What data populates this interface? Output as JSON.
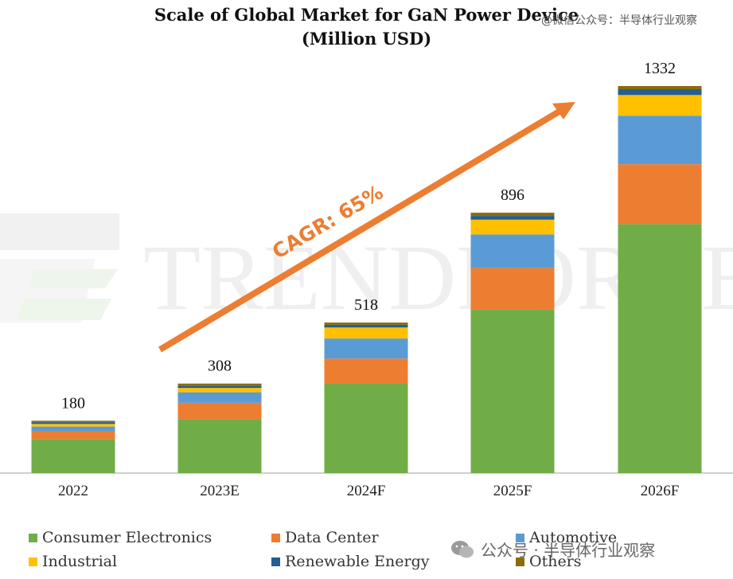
{
  "title": {
    "line1": "Scale of Global Market for GaN Power Device",
    "line2": "(Million USD)"
  },
  "watermark_top": "@微信公众号：半导体行业观察",
  "watermark_brand": "TRENDFORCE",
  "watermark_bottom": "公众号 · 半导体行业观察",
  "colors": {
    "Consumer Electronics": "#70ad47",
    "Data Center": "#ed7d31",
    "Automotive": "#5b9bd5",
    "Industrial": "#ffc000",
    "Renewable Energy": "#255e91",
    "Others": "#8a6d0b",
    "arrow": "#ed7d31"
  },
  "chart_data": {
    "type": "bar",
    "stacked": true,
    "title": "Scale of Global Market for GaN Power Device (Million USD)",
    "categories": [
      "2022",
      "2023E",
      "2024F",
      "2025F",
      "2026F"
    ],
    "totals": [
      180,
      308,
      518,
      896,
      1332
    ],
    "series": [
      {
        "name": "Consumer Electronics",
        "values": [
          117,
          186,
          307,
          564,
          857
        ]
      },
      {
        "name": "Data Center",
        "values": [
          27,
          56,
          87,
          142,
          206
        ]
      },
      {
        "name": "Automotive",
        "values": [
          16,
          36,
          69,
          115,
          167
        ]
      },
      {
        "name": "Industrial",
        "values": [
          9,
          15,
          38,
          51,
          71
        ]
      },
      {
        "name": "Renewable Energy",
        "values": [
          6,
          8,
          9,
          13,
          20
        ]
      },
      {
        "name": "Others",
        "values": [
          5,
          7,
          8,
          11,
          11
        ]
      }
    ],
    "annotation": "CAGR: 65%",
    "ylim": [
      0,
      1332
    ],
    "legend_position": "bottom"
  }
}
